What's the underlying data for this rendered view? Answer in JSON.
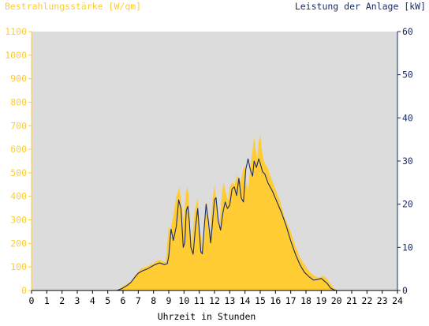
{
  "chart_data": {
    "type": "area",
    "title": "",
    "ylabel_left": "Bestrahlungsstärke [W/qm]",
    "ylabel_right": "Leistung der Anlage [kW]",
    "xlabel": "Uhrzeit in Stunden",
    "xlim": [
      0,
      24
    ],
    "ylim_left": [
      0,
      1100
    ],
    "ylim_right": [
      0,
      60
    ],
    "x_ticks": [
      "0",
      "1",
      "2",
      "3",
      "4",
      "5",
      "6",
      "7",
      "8",
      "9",
      "10",
      "11",
      "12",
      "13",
      "14",
      "15",
      "16",
      "17",
      "18",
      "19",
      "20",
      "21",
      "22",
      "23",
      "24"
    ],
    "y_left_ticks": [
      "0",
      "100",
      "200",
      "300",
      "400",
      "500",
      "600",
      "700",
      "800",
      "900",
      "1000",
      "1100"
    ],
    "y_right_ticks": [
      "0",
      "10",
      "20",
      "30",
      "40",
      "50",
      "60"
    ],
    "grid": false,
    "colors": {
      "plot_bg": "#dcdcdc",
      "irradiance_fill": "#ffcc33",
      "power_line": "#1a2b66",
      "left_axis_text": "#ffcc33",
      "right_axis_text": "#1a2b66",
      "x_axis_text": "#000000"
    },
    "series": [
      {
        "axis": "left",
        "style": "area",
        "x": [
          0,
          5.5,
          5.8,
          6.0,
          6.3,
          6.6,
          6.8,
          7.0,
          7.2,
          7.5,
          7.8,
          8.0,
          8.3,
          8.6,
          8.8,
          9.0,
          9.1,
          9.3,
          9.5,
          9.7,
          9.9,
          10.0,
          10.1,
          10.2,
          10.3,
          10.4,
          10.5,
          10.7,
          10.9,
          11.0,
          11.2,
          11.3,
          11.4,
          11.5,
          11.6,
          11.7,
          11.8,
          11.9,
          12.0,
          12.1,
          12.2,
          12.3,
          12.4,
          12.5,
          12.6,
          12.7,
          12.8,
          12.9,
          13.0,
          13.2,
          13.3,
          13.5,
          13.7,
          13.9,
          14.0,
          14.1,
          14.2,
          14.3,
          14.5,
          14.6,
          14.7,
          14.8,
          14.9,
          15.0,
          15.1,
          15.2,
          15.3,
          15.5,
          15.7,
          16.0,
          16.3,
          16.6,
          17.0,
          17.3,
          17.6,
          18.0,
          18.3,
          18.6,
          18.9,
          19.1,
          19.3,
          19.5,
          19.7,
          19.9,
          20.0,
          24
        ],
        "values": [
          0,
          0,
          8,
          18,
          30,
          45,
          65,
          80,
          95,
          100,
          110,
          115,
          130,
          125,
          120,
          270,
          255,
          320,
          400,
          440,
          330,
          300,
          400,
          440,
          410,
          260,
          195,
          340,
          390,
          280,
          185,
          200,
          310,
          380,
          260,
          220,
          330,
          400,
          450,
          380,
          300,
          260,
          350,
          420,
          460,
          430,
          400,
          380,
          440,
          460,
          450,
          490,
          460,
          520,
          530,
          450,
          430,
          490,
          600,
          650,
          600,
          560,
          630,
          660,
          600,
          560,
          540,
          520,
          480,
          430,
          380,
          310,
          250,
          190,
          140,
          100,
          75,
          60,
          55,
          62,
          55,
          40,
          20,
          6,
          0,
          0
        ]
      },
      {
        "axis": "right",
        "style": "line",
        "x": [
          0,
          5.6,
          5.9,
          6.2,
          6.5,
          6.8,
          7.0,
          7.3,
          7.6,
          7.9,
          8.1,
          8.4,
          8.7,
          8.9,
          9.0,
          9.15,
          9.3,
          9.5,
          9.65,
          9.8,
          9.95,
          10.05,
          10.15,
          10.25,
          10.35,
          10.45,
          10.6,
          10.75,
          10.9,
          11.0,
          11.1,
          11.2,
          11.3,
          11.45,
          11.6,
          11.75,
          11.9,
          12.0,
          12.1,
          12.25,
          12.4,
          12.55,
          12.7,
          12.85,
          13.0,
          13.15,
          13.3,
          13.45,
          13.6,
          13.75,
          13.9,
          14.05,
          14.2,
          14.35,
          14.5,
          14.6,
          14.75,
          14.9,
          15.0,
          15.15,
          15.3,
          15.5,
          15.8,
          16.1,
          16.4,
          16.7,
          17.0,
          17.3,
          17.6,
          17.9,
          18.2,
          18.5,
          18.8,
          19.0,
          19.2,
          19.4,
          19.6,
          19.8,
          20.0,
          24
        ],
        "values": [
          0,
          0,
          0.4,
          1.0,
          1.8,
          3.2,
          4.0,
          4.6,
          5.0,
          5.6,
          6.0,
          6.4,
          6.0,
          6.2,
          8.0,
          14.2,
          11.6,
          15.0,
          21.0,
          19.0,
          10.0,
          11.0,
          18.5,
          19.5,
          16.0,
          10.0,
          8.4,
          14.5,
          19.0,
          14.0,
          9.0,
          8.5,
          13.5,
          20.0,
          16.0,
          11.0,
          17.0,
          21.0,
          21.5,
          16.0,
          14.0,
          18.0,
          20.5,
          19.0,
          19.8,
          23.5,
          24.0,
          22.0,
          26.0,
          21.5,
          20.5,
          28.0,
          30.5,
          28.0,
          26.5,
          30.0,
          28.5,
          30.5,
          29.5,
          27.5,
          27.0,
          25.0,
          23.0,
          20.5,
          18.0,
          15.0,
          11.5,
          8.5,
          6.0,
          4.2,
          3.2,
          2.4,
          2.6,
          2.8,
          2.2,
          1.6,
          0.6,
          0.2,
          0,
          0
        ]
      }
    ]
  }
}
